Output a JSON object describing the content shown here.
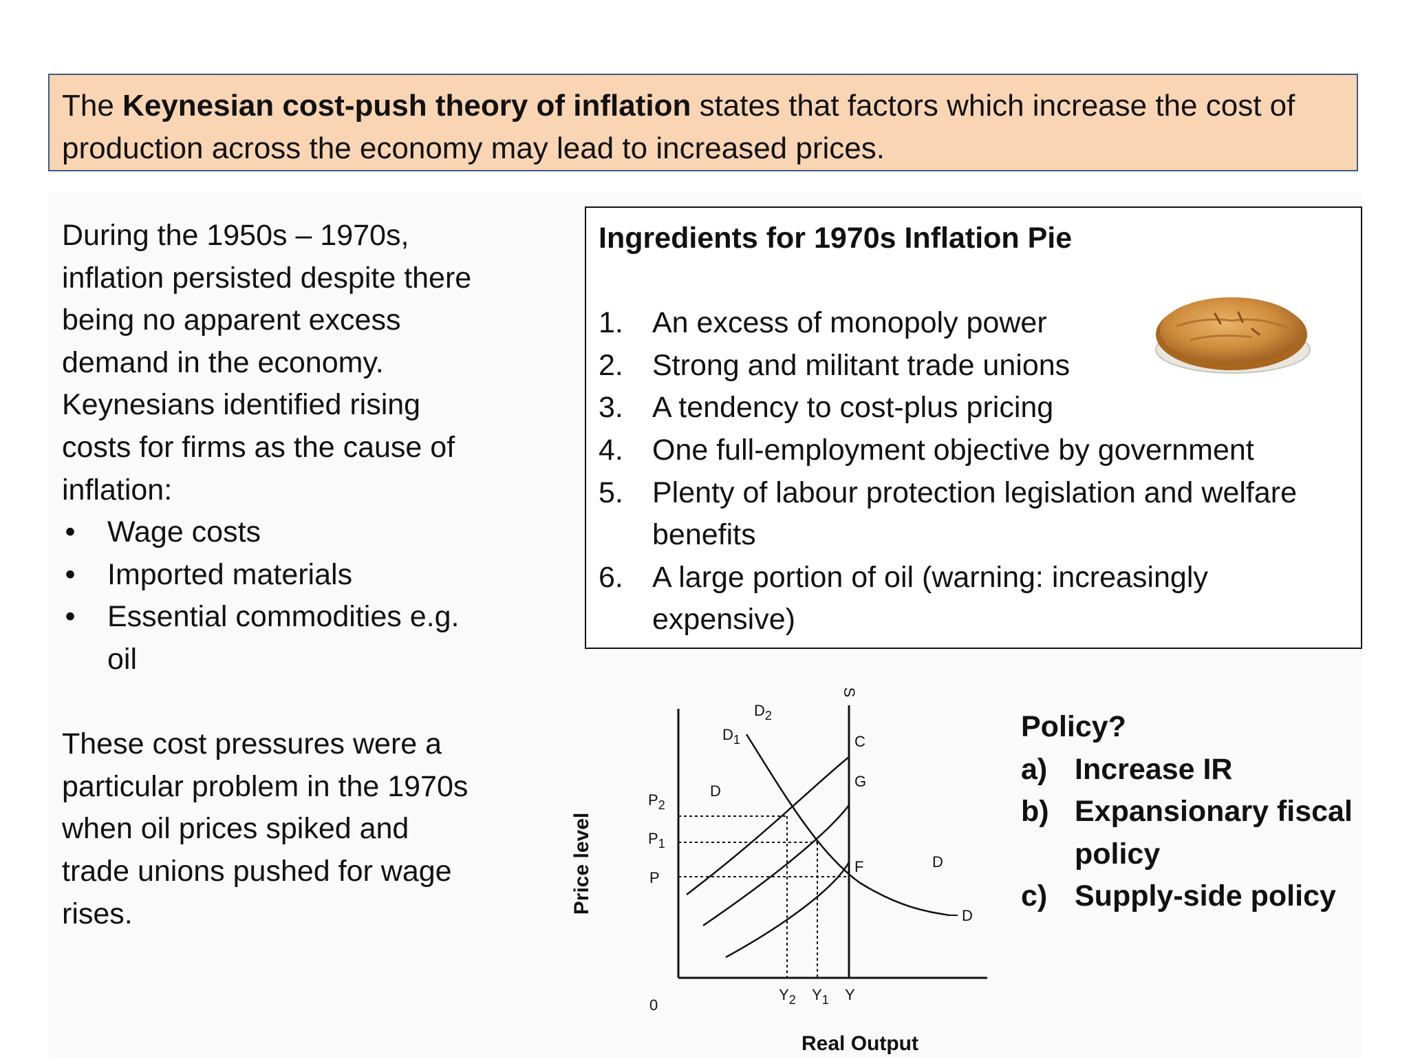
{
  "definition": {
    "prefix": "The ",
    "term": "Keynesian cost-push theory of inflation",
    "suffix": " states that factors which increase the cost of production across the economy may lead to increased prices."
  },
  "left_column": {
    "intro": "During the 1950s – 1970s, inflation persisted despite there being no apparent excess demand in the economy. Keynesians identified rising costs for firms as the cause of inflation:",
    "bullet_symbol": "•",
    "bullets": [
      "Wage costs",
      "Imported materials",
      "Essential commodities e.g. oil"
    ],
    "conclusion": "These cost pressures were a particular problem in the 1970s when oil prices spiked and trade unions pushed for wage rises."
  },
  "recipe": {
    "title": "Ingredients for 1970s Inflation Pie",
    "items": [
      {
        "num": "1.",
        "text": "An excess of monopoly power"
      },
      {
        "num": "2.",
        "text": "Strong and militant trade unions"
      },
      {
        "num": "3.",
        "text": "A tendency to cost-plus pricing"
      },
      {
        "num": "4.",
        "text": "One full-employment objective by government"
      },
      {
        "num": "5.",
        "text": "Plenty of labour protection legislation and welfare benefits"
      },
      {
        "num": "6.",
        "text": "A large portion of oil (warning: increasingly expensive)"
      }
    ],
    "image": "apple-pie-image"
  },
  "chart_data": {
    "type": "diagram",
    "xlabel": "Real Output",
    "ylabel": "Price level",
    "origin_label": "0",
    "price_ticks": [
      {
        "main": "P",
        "sub": ""
      },
      {
        "main": "P",
        "sub": "1"
      },
      {
        "main": "P",
        "sub": "2"
      }
    ],
    "output_ticks": [
      {
        "main": "Y",
        "sub": "2"
      },
      {
        "main": "Y",
        "sub": "1"
      },
      {
        "main": "Y",
        "sub": ""
      }
    ],
    "curve_labels": {
      "supply": "S",
      "d1": {
        "main": "D",
        "sub": "1"
      },
      "d2": {
        "main": "D",
        "sub": "2"
      },
      "d_left": "D",
      "d_right_upper": "D",
      "d_right_lower": "D"
    },
    "point_labels": [
      "C",
      "G",
      "F"
    ],
    "colors": {
      "ink": "#111111"
    }
  },
  "policy": {
    "title": "Policy?",
    "options": [
      {
        "label": "a)",
        "text": "Increase IR"
      },
      {
        "label": "b)",
        "text": "Expansionary fiscal policy"
      },
      {
        "label": "c)",
        "text": "Supply-side policy"
      }
    ]
  }
}
